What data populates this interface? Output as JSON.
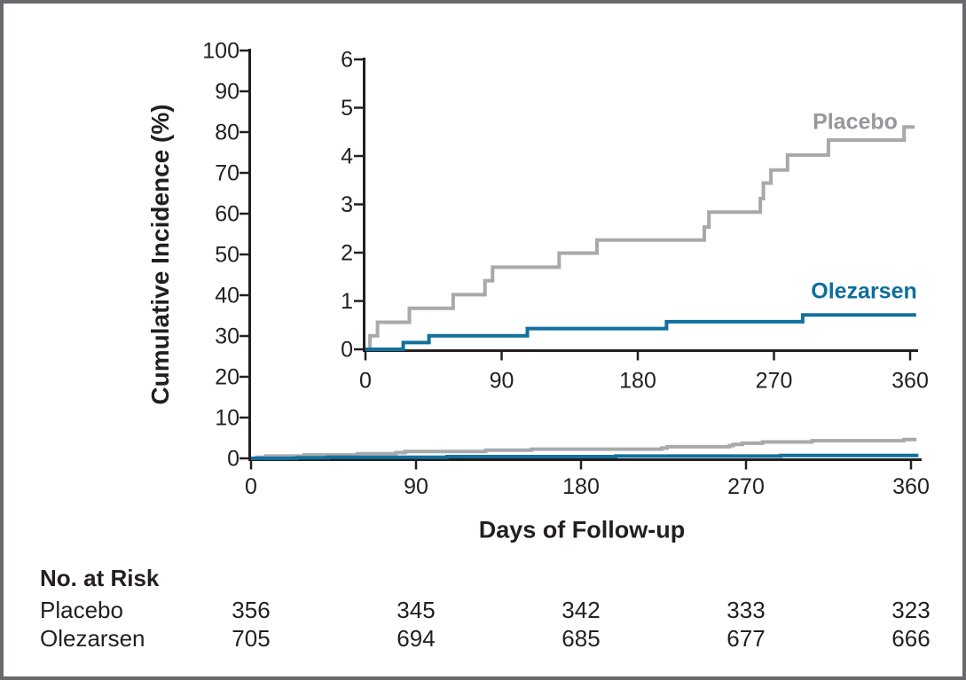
{
  "figure": {
    "y_axis_title": "Cumulative Incidence (%)",
    "x_axis_title": "Days of Follow-up"
  },
  "colors": {
    "placebo_line": "#a7a9aa",
    "placebo_label": "#96989b",
    "olezarsen_line": "#11709d",
    "olezarsen_label": "#0d6f9d",
    "axis_and_text": "#231f20",
    "figure_border": "#68696c"
  },
  "chart_data": {
    "type": "line",
    "subtype": "step-cumulative-incidence",
    "title": "",
    "xlabel": "Days of Follow-up",
    "ylabel": "Cumulative Incidence (%)",
    "xlim": [
      0,
      360
    ],
    "x_ticks": [
      0,
      90,
      180,
      270,
      360
    ],
    "grid": false,
    "views": [
      {
        "id": "main",
        "ylim": [
          0,
          100
        ],
        "y_ticks": [
          0,
          10,
          20,
          30,
          40,
          50,
          60,
          70,
          80,
          90,
          100
        ]
      },
      {
        "id": "inset",
        "ylim": [
          0,
          6
        ],
        "y_ticks": [
          0,
          1,
          2,
          3,
          4,
          5,
          6
        ]
      }
    ],
    "series": [
      {
        "name": "Placebo",
        "color": "#a7a9aa",
        "label_color": "#96989b",
        "points": [
          [
            0,
            0
          ],
          [
            3,
            0.28
          ],
          [
            8,
            0.56
          ],
          [
            29,
            0.85
          ],
          [
            58,
            1.13
          ],
          [
            79,
            1.42
          ],
          [
            84,
            1.7
          ],
          [
            128,
            1.99
          ],
          [
            153,
            2.26
          ],
          [
            224,
            2.53
          ],
          [
            227,
            2.84
          ],
          [
            261,
            3.12
          ],
          [
            263,
            3.44
          ],
          [
            268,
            3.71
          ],
          [
            279,
            4.02
          ],
          [
            306,
            4.33
          ],
          [
            356,
            4.6
          ]
        ],
        "end_day": 363,
        "final_value": 4.6
      },
      {
        "name": "Olezarsen",
        "color": "#11709d",
        "label_color": "#0d6f9d",
        "points": [
          [
            0,
            0
          ],
          [
            25,
            0.14
          ],
          [
            42,
            0.28
          ],
          [
            107,
            0.43
          ],
          [
            199,
            0.57
          ],
          [
            289,
            0.71
          ]
        ],
        "end_day": 364,
        "final_value": 0.71
      }
    ]
  },
  "risk_table": {
    "header": "No. at Risk",
    "columns": [
      0,
      90,
      180,
      270,
      360
    ],
    "rows": [
      {
        "label": "Placebo",
        "counts": [
          "356",
          "345",
          "342",
          "333",
          "323"
        ]
      },
      {
        "label": "Olezarsen",
        "counts": [
          "705",
          "694",
          "685",
          "677",
          "666"
        ]
      }
    ]
  }
}
